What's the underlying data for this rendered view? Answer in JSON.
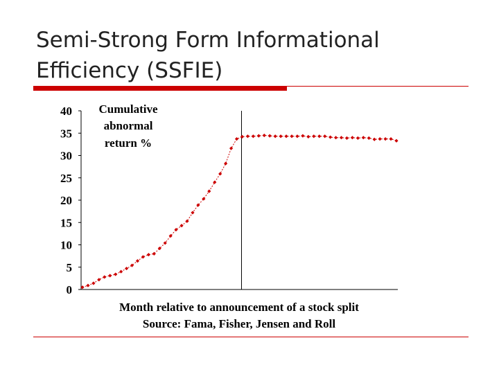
{
  "slide": {
    "title_line1": "Semi-Strong Form Informational",
    "title_line2": "Efficiency (SSFIE)"
  },
  "colors": {
    "accent_rule": "#cc0000",
    "series": "#cc0000"
  },
  "chart_data": {
    "type": "line",
    "ylabel": [
      "Cumulative",
      "abnormal",
      "return %"
    ],
    "xlabel": "Month relative to announcement of a stock split",
    "source": "Source: Fama, Fisher, Jensen and Roll",
    "ylim": [
      0,
      40
    ],
    "yticks": [
      "0",
      "5",
      "10",
      "15",
      "20",
      "25",
      "30",
      "35",
      "40"
    ],
    "announcement_index": 29,
    "series": [
      {
        "values": [
          0.5,
          0.9,
          1.4,
          2.2,
          2.8,
          3.1,
          3.4,
          4.0,
          4.7,
          5.4,
          6.4,
          7.3,
          7.8,
          8.0,
          9.2,
          10.4,
          12.0,
          13.4,
          14.3,
          15.3,
          17.2,
          18.9,
          20.3,
          22.0,
          24.0,
          25.9,
          28.2,
          31.6,
          33.7,
          34.2,
          34.3,
          34.3,
          34.4,
          34.5,
          34.4,
          34.3,
          34.3,
          34.3,
          34.3,
          34.3,
          34.4,
          34.2,
          34.3,
          34.3,
          34.3,
          34.1,
          34.0,
          34.0,
          33.9,
          34.0,
          33.9,
          34.0,
          33.9,
          33.6,
          33.7,
          33.7,
          33.7,
          33.3
        ]
      }
    ],
    "grid": false
  }
}
